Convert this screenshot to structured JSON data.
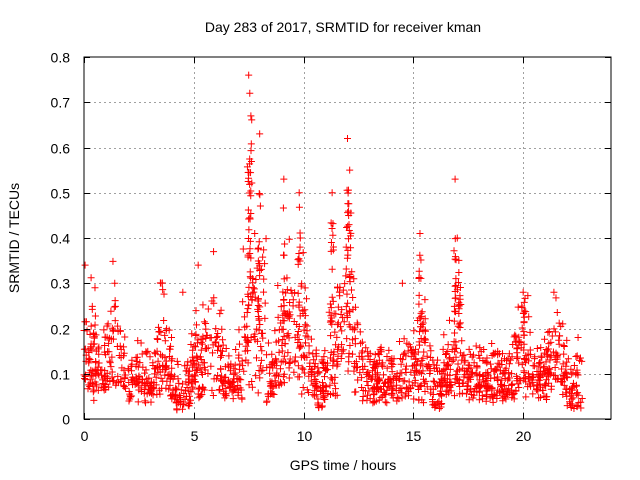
{
  "chart_data": {
    "type": "scatter",
    "title": "Day 283 of 2017, SRMTID for receiver kman",
    "xlabel": "GPS time / hours",
    "ylabel": "SRMTID / TECUs",
    "xlim": [
      0,
      24
    ],
    "ylim": [
      0,
      0.8
    ],
    "xticks": [
      0,
      5,
      10,
      15,
      20
    ],
    "yticks": [
      0,
      0.1,
      0.2,
      0.3,
      0.4,
      0.5,
      0.6,
      0.7,
      0.8
    ],
    "xtick_labels": [
      "0",
      "5",
      "10",
      "15",
      "20"
    ],
    "ytick_labels": [
      "0",
      "0.1",
      "0.2",
      "0.3",
      "0.4",
      "0.5",
      "0.6",
      "0.7",
      "0.8"
    ],
    "grid": true,
    "marker": "+",
    "color": "#ff0000",
    "peaks": [
      {
        "x": 0.05,
        "y": 0.34
      },
      {
        "x": 0.5,
        "y": 0.29
      },
      {
        "x": 1.4,
        "y": 0.3
      },
      {
        "x": 3.5,
        "y": 0.3
      },
      {
        "x": 4.5,
        "y": 0.28
      },
      {
        "x": 5.2,
        "y": 0.34
      },
      {
        "x": 5.9,
        "y": 0.37
      },
      {
        "x": 7.5,
        "y": 0.76
      },
      {
        "x": 7.55,
        "y": 0.72
      },
      {
        "x": 7.6,
        "y": 0.67
      },
      {
        "x": 8.0,
        "y": 0.63
      },
      {
        "x": 9.1,
        "y": 0.53
      },
      {
        "x": 9.8,
        "y": 0.5
      },
      {
        "x": 11.3,
        "y": 0.5
      },
      {
        "x": 12.0,
        "y": 0.62
      },
      {
        "x": 12.1,
        "y": 0.55
      },
      {
        "x": 14.5,
        "y": 0.3
      },
      {
        "x": 15.3,
        "y": 0.41
      },
      {
        "x": 16.9,
        "y": 0.53
      },
      {
        "x": 17.0,
        "y": 0.4
      },
      {
        "x": 20.0,
        "y": 0.28
      },
      {
        "x": 21.4,
        "y": 0.28
      },
      {
        "x": 22.5,
        "y": 0.18
      }
    ]
  }
}
